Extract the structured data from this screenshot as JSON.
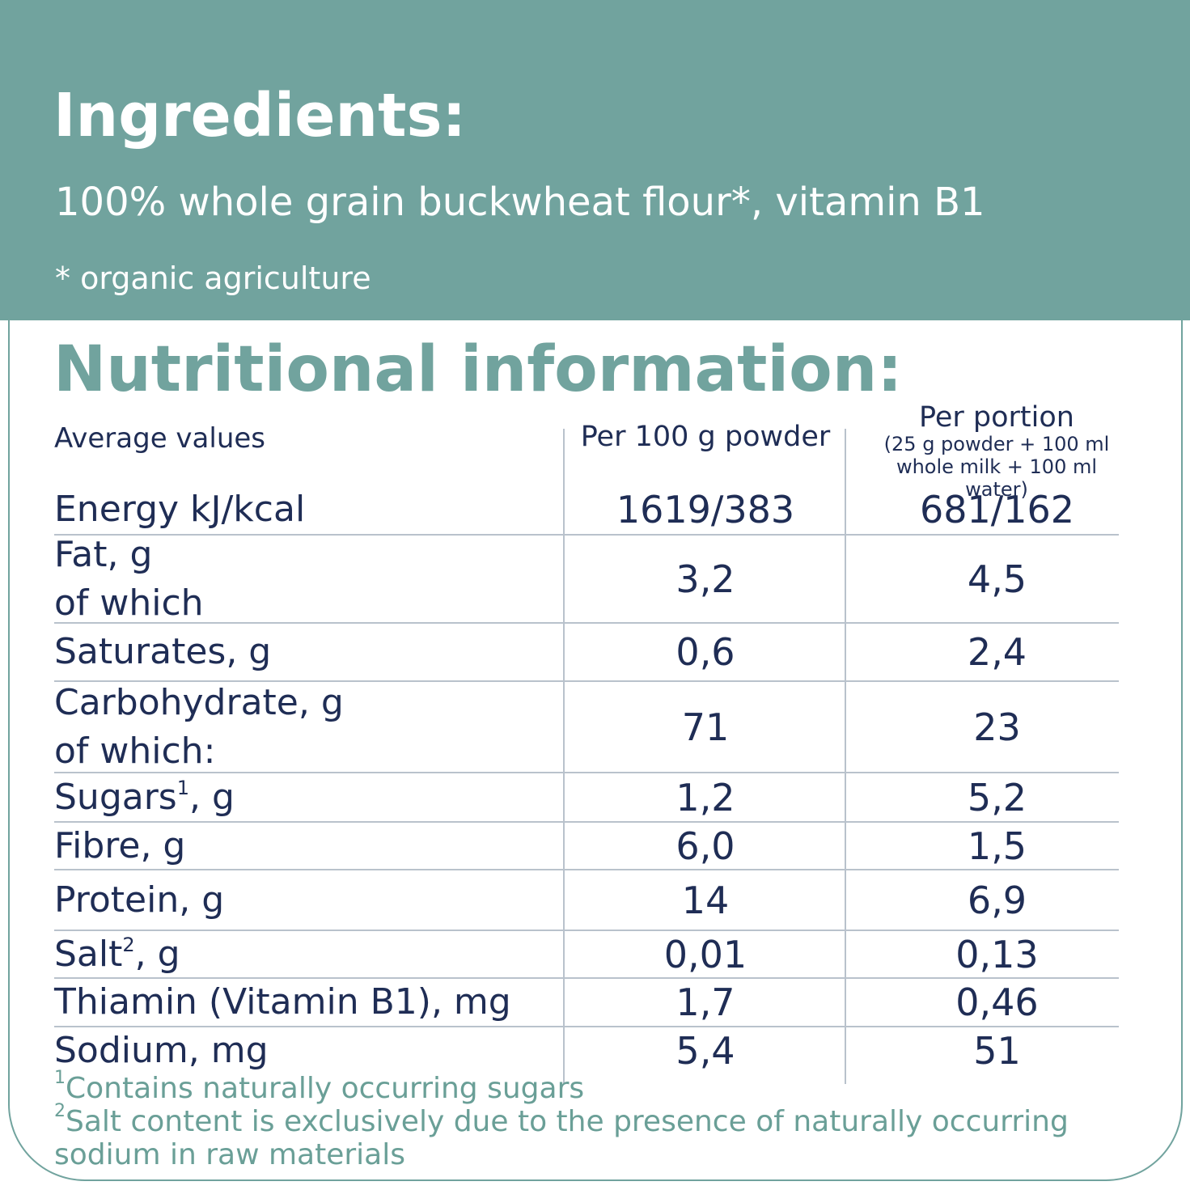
{
  "ingredients": {
    "title": "Ingredients:",
    "text": "100% whole grain buckwheat flour*, vitamin B1",
    "note": "* organic agriculture"
  },
  "nutrition": {
    "title": "Nutritional information:",
    "header": {
      "label": "Average values",
      "col1": "Per 100 g powder",
      "col2": "Per portion",
      "col2_note": "(25 g powder + 100 ml whole milk + 100 ml water)"
    },
    "rows": [
      {
        "label": [
          "Energy kJ/kcal"
        ],
        "col1": "1619/383",
        "col2": "681/162"
      },
      {
        "label": [
          "Fat, g",
          "of which"
        ],
        "col1": "3,2",
        "col2": "4,5"
      },
      {
        "label": [
          "Saturates, g"
        ],
        "col1": "0,6",
        "col2": "2,4"
      },
      {
        "label": [
          "Carbohydrate, g",
          "of which:"
        ],
        "col1": "71",
        "col2": "23"
      },
      {
        "label": [
          {
            "text": "Sugars",
            "sup": "1",
            "after": ", g"
          }
        ],
        "col1": "1,2",
        "col2": "5,2"
      },
      {
        "label": [
          "Fibre, g"
        ],
        "col1": "6,0",
        "col2": "1,5"
      },
      {
        "label": [
          "Protein, g"
        ],
        "col1": "14",
        "col2": "6,9"
      },
      {
        "label": [
          {
            "text": "Salt",
            "sup": "2",
            "after": ", g"
          }
        ],
        "col1": "0,01",
        "col2": "0,13"
      },
      {
        "label": [
          "Thiamin (Vitamin B1), mg"
        ],
        "col1": "1,7",
        "col2": "0,46"
      },
      {
        "label": [
          "Sodium, mg"
        ],
        "col1": "5,4",
        "col2": "51"
      }
    ],
    "footnotes": [
      {
        "mark": "1",
        "text": "Contains naturally occurring sugars"
      },
      {
        "mark": "2",
        "text": "Salt content is exclusively due to the presence of naturally occurring sodium in raw materials"
      }
    ]
  }
}
